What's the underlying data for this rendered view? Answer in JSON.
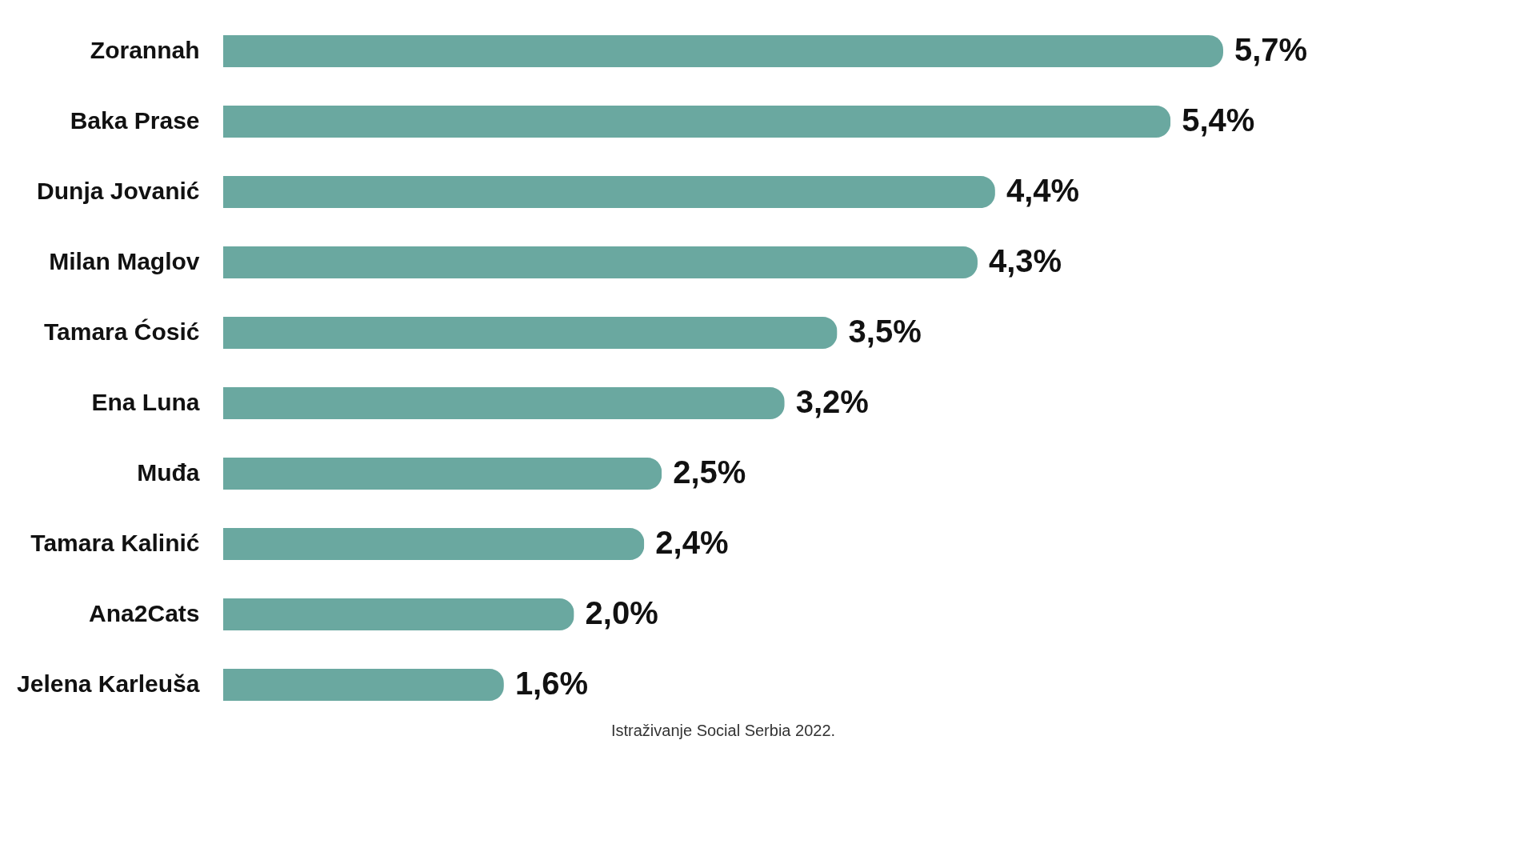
{
  "chart_data": {
    "type": "bar",
    "orientation": "horizontal",
    "categories": [
      "Zorannah",
      "Baka Prase",
      "Dunja Jovanić",
      "Milan Maglov",
      "Tamara Ćosić",
      "Ena Luna",
      "Muđa",
      "Tamara Kalinić",
      "Ana2Cats",
      "Jelena Karleuša"
    ],
    "values": [
      5.7,
      5.4,
      4.4,
      4.3,
      3.5,
      3.2,
      2.5,
      2.4,
      2.0,
      1.6
    ],
    "value_labels": [
      "5,7%",
      "5,4%",
      "4,4%",
      "4,3%",
      "3,5%",
      "3,2%",
      "2,5%",
      "2,4%",
      "2,0%",
      "1,6%"
    ],
    "color": "#6aa8a0",
    "grid": false,
    "annotations": [
      "Istraživanje Social Serbia 2022."
    ]
  }
}
